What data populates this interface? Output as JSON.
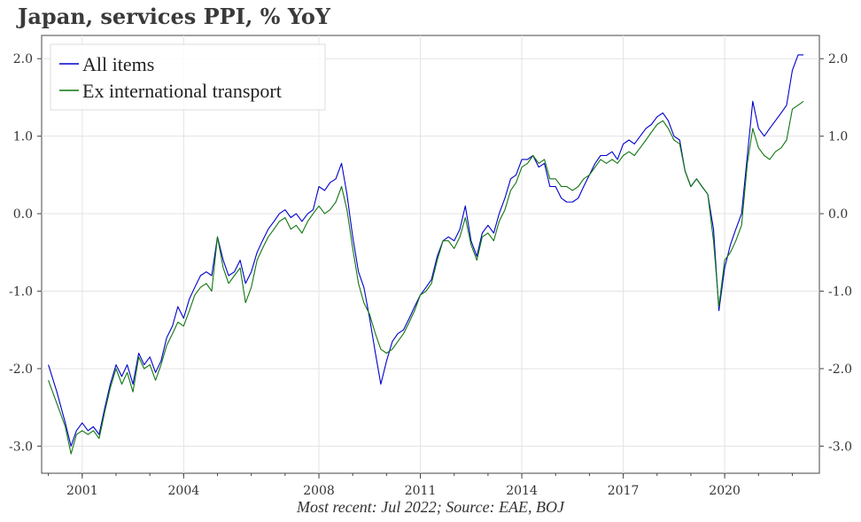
{
  "chart_data": {
    "type": "line",
    "title": "Japan, services PPI, % YoY",
    "source": "Most recent: Jul 2022; Source: EAE, BOJ",
    "xlabel": "",
    "ylabel": "",
    "xlim": [
      1999.8,
      2022.8
    ],
    "ylim": [
      -3.35,
      2.3
    ],
    "x_ticks": [
      2001,
      2004,
      2008,
      2011,
      2014,
      2017,
      2020
    ],
    "y_ticks": [
      {
        "value": 2.0,
        "label": "2.0"
      },
      {
        "value": 1.0,
        "label": "1.0"
      },
      {
        "value": 0.0,
        "label": "0.0"
      },
      {
        "value": -1.0,
        "label": "-1.0"
      },
      {
        "value": -2.0,
        "label": "-2.0"
      },
      {
        "value": -3.0,
        "label": "-3.0"
      }
    ],
    "grid": true,
    "legend_position": "top-left",
    "series": [
      {
        "name": "All items",
        "color": "#0000cc",
        "points": [
          [
            2000.0,
            -1.95
          ],
          [
            2000.25,
            -2.3
          ],
          [
            2000.5,
            -2.7
          ],
          [
            2000.67,
            -3.0
          ],
          [
            2000.83,
            -2.8
          ],
          [
            2001.0,
            -2.7
          ],
          [
            2001.17,
            -2.8
          ],
          [
            2001.33,
            -2.75
          ],
          [
            2001.5,
            -2.85
          ],
          [
            2001.67,
            -2.5
          ],
          [
            2001.83,
            -2.2
          ],
          [
            2002.0,
            -1.95
          ],
          [
            2002.17,
            -2.1
          ],
          [
            2002.33,
            -1.95
          ],
          [
            2002.5,
            -2.2
          ],
          [
            2002.67,
            -1.8
          ],
          [
            2002.83,
            -1.95
          ],
          [
            2003.0,
            -1.85
          ],
          [
            2003.17,
            -2.05
          ],
          [
            2003.33,
            -1.9
          ],
          [
            2003.5,
            -1.6
          ],
          [
            2003.67,
            -1.45
          ],
          [
            2003.83,
            -1.2
          ],
          [
            2004.0,
            -1.35
          ],
          [
            2004.17,
            -1.1
          ],
          [
            2004.33,
            -0.95
          ],
          [
            2004.5,
            -0.8
          ],
          [
            2004.67,
            -0.75
          ],
          [
            2004.83,
            -0.8
          ],
          [
            2005.0,
            -0.3
          ],
          [
            2005.17,
            -0.6
          ],
          [
            2005.33,
            -0.8
          ],
          [
            2005.5,
            -0.75
          ],
          [
            2005.67,
            -0.6
          ],
          [
            2005.83,
            -0.9
          ],
          [
            2006.0,
            -0.75
          ],
          [
            2006.17,
            -0.5
          ],
          [
            2006.33,
            -0.35
          ],
          [
            2006.5,
            -0.2
          ],
          [
            2006.67,
            -0.1
          ],
          [
            2006.83,
            0.0
          ],
          [
            2007.0,
            0.05
          ],
          [
            2007.17,
            -0.05
          ],
          [
            2007.33,
            0.0
          ],
          [
            2007.5,
            -0.1
          ],
          [
            2007.67,
            0.0
          ],
          [
            2007.83,
            0.05
          ],
          [
            2008.0,
            0.35
          ],
          [
            2008.17,
            0.3
          ],
          [
            2008.33,
            0.4
          ],
          [
            2008.5,
            0.45
          ],
          [
            2008.67,
            0.65
          ],
          [
            2008.83,
            0.25
          ],
          [
            2009.0,
            -0.3
          ],
          [
            2009.17,
            -0.75
          ],
          [
            2009.33,
            -0.95
          ],
          [
            2009.5,
            -1.35
          ],
          [
            2009.67,
            -1.8
          ],
          [
            2009.83,
            -2.2
          ],
          [
            2010.0,
            -1.9
          ],
          [
            2010.17,
            -1.65
          ],
          [
            2010.33,
            -1.55
          ],
          [
            2010.5,
            -1.5
          ],
          [
            2010.67,
            -1.35
          ],
          [
            2010.83,
            -1.2
          ],
          [
            2011.0,
            -1.05
          ],
          [
            2011.17,
            -0.95
          ],
          [
            2011.33,
            -0.85
          ],
          [
            2011.5,
            -0.55
          ],
          [
            2011.67,
            -0.35
          ],
          [
            2011.83,
            -0.3
          ],
          [
            2012.0,
            -0.35
          ],
          [
            2012.17,
            -0.2
          ],
          [
            2012.33,
            0.1
          ],
          [
            2012.5,
            -0.35
          ],
          [
            2012.67,
            -0.55
          ],
          [
            2012.83,
            -0.25
          ],
          [
            2013.0,
            -0.15
          ],
          [
            2013.17,
            -0.25
          ],
          [
            2013.33,
            0.0
          ],
          [
            2013.5,
            0.2
          ],
          [
            2013.67,
            0.45
          ],
          [
            2013.83,
            0.5
          ],
          [
            2014.0,
            0.7
          ],
          [
            2014.17,
            0.7
          ],
          [
            2014.33,
            0.75
          ],
          [
            2014.5,
            0.6
          ],
          [
            2014.67,
            0.65
          ],
          [
            2014.83,
            0.35
          ],
          [
            2015.0,
            0.35
          ],
          [
            2015.17,
            0.2
          ],
          [
            2015.33,
            0.15
          ],
          [
            2015.5,
            0.15
          ],
          [
            2015.67,
            0.2
          ],
          [
            2015.83,
            0.35
          ],
          [
            2016.0,
            0.5
          ],
          [
            2016.17,
            0.65
          ],
          [
            2016.33,
            0.75
          ],
          [
            2016.5,
            0.75
          ],
          [
            2016.67,
            0.8
          ],
          [
            2016.83,
            0.7
          ],
          [
            2017.0,
            0.9
          ],
          [
            2017.17,
            0.95
          ],
          [
            2017.33,
            0.9
          ],
          [
            2017.5,
            1.0
          ],
          [
            2017.67,
            1.1
          ],
          [
            2017.83,
            1.15
          ],
          [
            2018.0,
            1.25
          ],
          [
            2018.17,
            1.3
          ],
          [
            2018.33,
            1.2
          ],
          [
            2018.5,
            1.0
          ],
          [
            2018.67,
            0.95
          ],
          [
            2018.83,
            0.55
          ],
          [
            2019.0,
            0.35
          ],
          [
            2019.17,
            0.45
          ],
          [
            2019.33,
            0.35
          ],
          [
            2019.5,
            0.25
          ],
          [
            2019.67,
            -0.2
          ],
          [
            2019.83,
            -1.25
          ],
          [
            2020.0,
            -0.7
          ],
          [
            2020.17,
            -0.4
          ],
          [
            2020.33,
            -0.2
          ],
          [
            2020.5,
            0.0
          ],
          [
            2020.67,
            0.75
          ],
          [
            2020.83,
            1.45
          ],
          [
            2021.0,
            1.1
          ],
          [
            2021.17,
            1.0
          ],
          [
            2021.33,
            1.1
          ],
          [
            2021.5,
            1.2
          ],
          [
            2021.67,
            1.3
          ],
          [
            2021.83,
            1.4
          ],
          [
            2022.0,
            1.85
          ],
          [
            2022.17,
            2.05
          ],
          [
            2022.33,
            2.05
          ]
        ]
      },
      {
        "name": "Ex international transport",
        "color": "#117711",
        "points": [
          [
            2000.0,
            -2.15
          ],
          [
            2000.25,
            -2.45
          ],
          [
            2000.5,
            -2.75
          ],
          [
            2000.67,
            -3.1
          ],
          [
            2000.83,
            -2.85
          ],
          [
            2001.0,
            -2.8
          ],
          [
            2001.17,
            -2.85
          ],
          [
            2001.33,
            -2.8
          ],
          [
            2001.5,
            -2.9
          ],
          [
            2001.67,
            -2.55
          ],
          [
            2001.83,
            -2.25
          ],
          [
            2002.0,
            -2.0
          ],
          [
            2002.17,
            -2.2
          ],
          [
            2002.33,
            -2.05
          ],
          [
            2002.5,
            -2.3
          ],
          [
            2002.67,
            -1.85
          ],
          [
            2002.83,
            -2.0
          ],
          [
            2003.0,
            -1.95
          ],
          [
            2003.17,
            -2.15
          ],
          [
            2003.33,
            -1.95
          ],
          [
            2003.5,
            -1.7
          ],
          [
            2003.67,
            -1.55
          ],
          [
            2003.83,
            -1.4
          ],
          [
            2004.0,
            -1.45
          ],
          [
            2004.17,
            -1.25
          ],
          [
            2004.33,
            -1.05
          ],
          [
            2004.5,
            -0.95
          ],
          [
            2004.67,
            -0.9
          ],
          [
            2004.83,
            -1.0
          ],
          [
            2005.0,
            -0.3
          ],
          [
            2005.17,
            -0.7
          ],
          [
            2005.33,
            -0.9
          ],
          [
            2005.5,
            -0.8
          ],
          [
            2005.67,
            -0.7
          ],
          [
            2005.83,
            -1.15
          ],
          [
            2006.0,
            -0.95
          ],
          [
            2006.17,
            -0.6
          ],
          [
            2006.33,
            -0.45
          ],
          [
            2006.5,
            -0.3
          ],
          [
            2006.67,
            -0.2
          ],
          [
            2006.83,
            -0.1
          ],
          [
            2007.0,
            -0.05
          ],
          [
            2007.17,
            -0.2
          ],
          [
            2007.33,
            -0.15
          ],
          [
            2007.5,
            -0.25
          ],
          [
            2007.67,
            -0.1
          ],
          [
            2007.83,
            0.0
          ],
          [
            2008.0,
            0.1
          ],
          [
            2008.17,
            0.0
          ],
          [
            2008.33,
            0.05
          ],
          [
            2008.5,
            0.15
          ],
          [
            2008.67,
            0.35
          ],
          [
            2008.83,
            0.05
          ],
          [
            2009.0,
            -0.45
          ],
          [
            2009.17,
            -0.9
          ],
          [
            2009.33,
            -1.15
          ],
          [
            2009.5,
            -1.3
          ],
          [
            2009.67,
            -1.55
          ],
          [
            2009.83,
            -1.75
          ],
          [
            2010.0,
            -1.8
          ],
          [
            2010.17,
            -1.75
          ],
          [
            2010.33,
            -1.65
          ],
          [
            2010.5,
            -1.55
          ],
          [
            2010.67,
            -1.4
          ],
          [
            2010.83,
            -1.25
          ],
          [
            2011.0,
            -1.05
          ],
          [
            2011.17,
            -1.0
          ],
          [
            2011.33,
            -0.9
          ],
          [
            2011.5,
            -0.6
          ],
          [
            2011.67,
            -0.35
          ],
          [
            2011.83,
            -0.35
          ],
          [
            2012.0,
            -0.45
          ],
          [
            2012.17,
            -0.3
          ],
          [
            2012.33,
            -0.05
          ],
          [
            2012.5,
            -0.4
          ],
          [
            2012.67,
            -0.6
          ],
          [
            2012.83,
            -0.3
          ],
          [
            2013.0,
            -0.25
          ],
          [
            2013.17,
            -0.35
          ],
          [
            2013.33,
            -0.1
          ],
          [
            2013.5,
            0.05
          ],
          [
            2013.67,
            0.3
          ],
          [
            2013.83,
            0.4
          ],
          [
            2014.0,
            0.6
          ],
          [
            2014.17,
            0.65
          ],
          [
            2014.33,
            0.75
          ],
          [
            2014.5,
            0.65
          ],
          [
            2014.67,
            0.7
          ],
          [
            2014.83,
            0.45
          ],
          [
            2015.0,
            0.45
          ],
          [
            2015.17,
            0.35
          ],
          [
            2015.33,
            0.35
          ],
          [
            2015.5,
            0.3
          ],
          [
            2015.67,
            0.35
          ],
          [
            2015.83,
            0.45
          ],
          [
            2016.0,
            0.5
          ],
          [
            2016.17,
            0.6
          ],
          [
            2016.33,
            0.7
          ],
          [
            2016.5,
            0.65
          ],
          [
            2016.67,
            0.7
          ],
          [
            2016.83,
            0.65
          ],
          [
            2017.0,
            0.75
          ],
          [
            2017.17,
            0.8
          ],
          [
            2017.33,
            0.75
          ],
          [
            2017.5,
            0.85
          ],
          [
            2017.67,
            0.95
          ],
          [
            2017.83,
            1.05
          ],
          [
            2018.0,
            1.15
          ],
          [
            2018.17,
            1.2
          ],
          [
            2018.33,
            1.1
          ],
          [
            2018.5,
            0.95
          ],
          [
            2018.67,
            0.9
          ],
          [
            2018.83,
            0.55
          ],
          [
            2019.0,
            0.35
          ],
          [
            2019.17,
            0.45
          ],
          [
            2019.33,
            0.35
          ],
          [
            2019.5,
            0.25
          ],
          [
            2019.67,
            -0.35
          ],
          [
            2019.83,
            -1.2
          ],
          [
            2020.0,
            -0.6
          ],
          [
            2020.17,
            -0.5
          ],
          [
            2020.33,
            -0.35
          ],
          [
            2020.5,
            -0.15
          ],
          [
            2020.67,
            0.65
          ],
          [
            2020.83,
            1.1
          ],
          [
            2021.0,
            0.85
          ],
          [
            2021.17,
            0.75
          ],
          [
            2021.33,
            0.7
          ],
          [
            2021.5,
            0.8
          ],
          [
            2021.67,
            0.85
          ],
          [
            2021.83,
            0.95
          ],
          [
            2022.0,
            1.35
          ],
          [
            2022.17,
            1.4
          ],
          [
            2022.33,
            1.45
          ]
        ]
      }
    ]
  }
}
